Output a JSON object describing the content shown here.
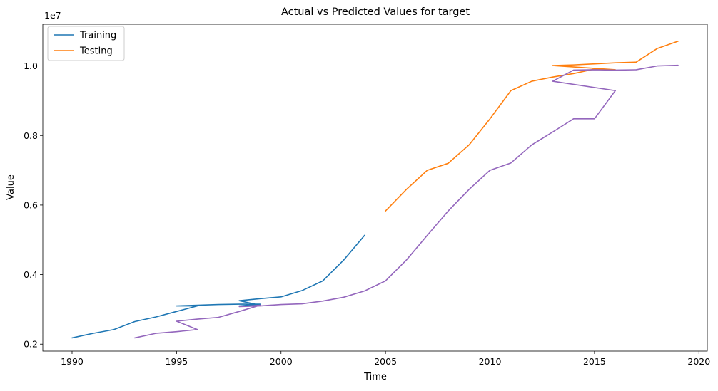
{
  "chart_data": {
    "type": "line",
    "title": "Actual vs Predicted Values for target",
    "xlabel": "Time",
    "ylabel": "Value",
    "y_offset_label": "1e7",
    "xlim": [
      1988.6,
      2020.4
    ],
    "ylim": [
      1800000,
      11200000
    ],
    "x_ticks": [
      1990,
      1995,
      2000,
      2005,
      2010,
      2015,
      2020
    ],
    "y_ticks": [
      2000000,
      4000000,
      6000000,
      8000000,
      10000000
    ],
    "x_tick_labels": [
      "1990",
      "1995",
      "2000",
      "2005",
      "2010",
      "2015",
      "2020"
    ],
    "y_tick_labels": [
      "0.2",
      "0.4",
      "0.6",
      "0.8",
      "1.0"
    ],
    "legend_position": "upper-left",
    "grid": false,
    "series": [
      {
        "name": "Training",
        "color": "#1f77b4",
        "x": [
          1990,
          1991,
          1992,
          1993,
          1994,
          1995,
          1996,
          1995,
          1996,
          1997,
          1998,
          1999,
          1998,
          1999,
          1998,
          1999,
          2000,
          2001,
          2002,
          2003,
          2004
        ],
        "y": [
          2180000,
          2310000,
          2420000,
          2650000,
          2780000,
          2940000,
          3100000,
          3100000,
          3120000,
          3140000,
          3150000,
          3150000,
          3100000,
          3120000,
          3250000,
          3310000,
          3360000,
          3540000,
          3820000,
          4420000,
          5130000
        ]
      },
      {
        "name": "Testing",
        "color": "#ff7f0e",
        "x": [
          2005,
          2006,
          2007,
          2008,
          2009,
          2010,
          2011,
          2012,
          2013,
          2014,
          2015,
          2016,
          2013,
          2014,
          2015,
          2016,
          2017,
          2018,
          2019
        ],
        "y": [
          5830000,
          6450000,
          7000000,
          7200000,
          7730000,
          8480000,
          9290000,
          9560000,
          9680000,
          9780000,
          9910000,
          9890000,
          10010000,
          10030000,
          10060000,
          10090000,
          10110000,
          10500000,
          10710000
        ]
      },
      {
        "name": "",
        "color": "#9467bd",
        "x": [
          1993,
          1994,
          1995,
          1996,
          1995,
          1996,
          1997,
          1998,
          1999,
          1998,
          1999,
          2000,
          2001,
          2002,
          2003,
          2004,
          2005,
          2006,
          2007,
          2008,
          2009,
          2010,
          2011,
          2012,
          2013,
          2014,
          2015,
          2016,
          2013,
          2014,
          2015,
          2016,
          2017,
          2018,
          2019
        ],
        "y": [
          2180000,
          2310000,
          2360000,
          2420000,
          2660000,
          2720000,
          2770000,
          2940000,
          3120000,
          3080000,
          3100000,
          3140000,
          3160000,
          3240000,
          3350000,
          3530000,
          3820000,
          4420000,
          5130000,
          5830000,
          6450000,
          7000000,
          7210000,
          7730000,
          8100000,
          8480000,
          8480000,
          9290000,
          9560000,
          9880000,
          9890000,
          9880000,
          9890000,
          10000000,
          10020000
        ]
      }
    ]
  }
}
